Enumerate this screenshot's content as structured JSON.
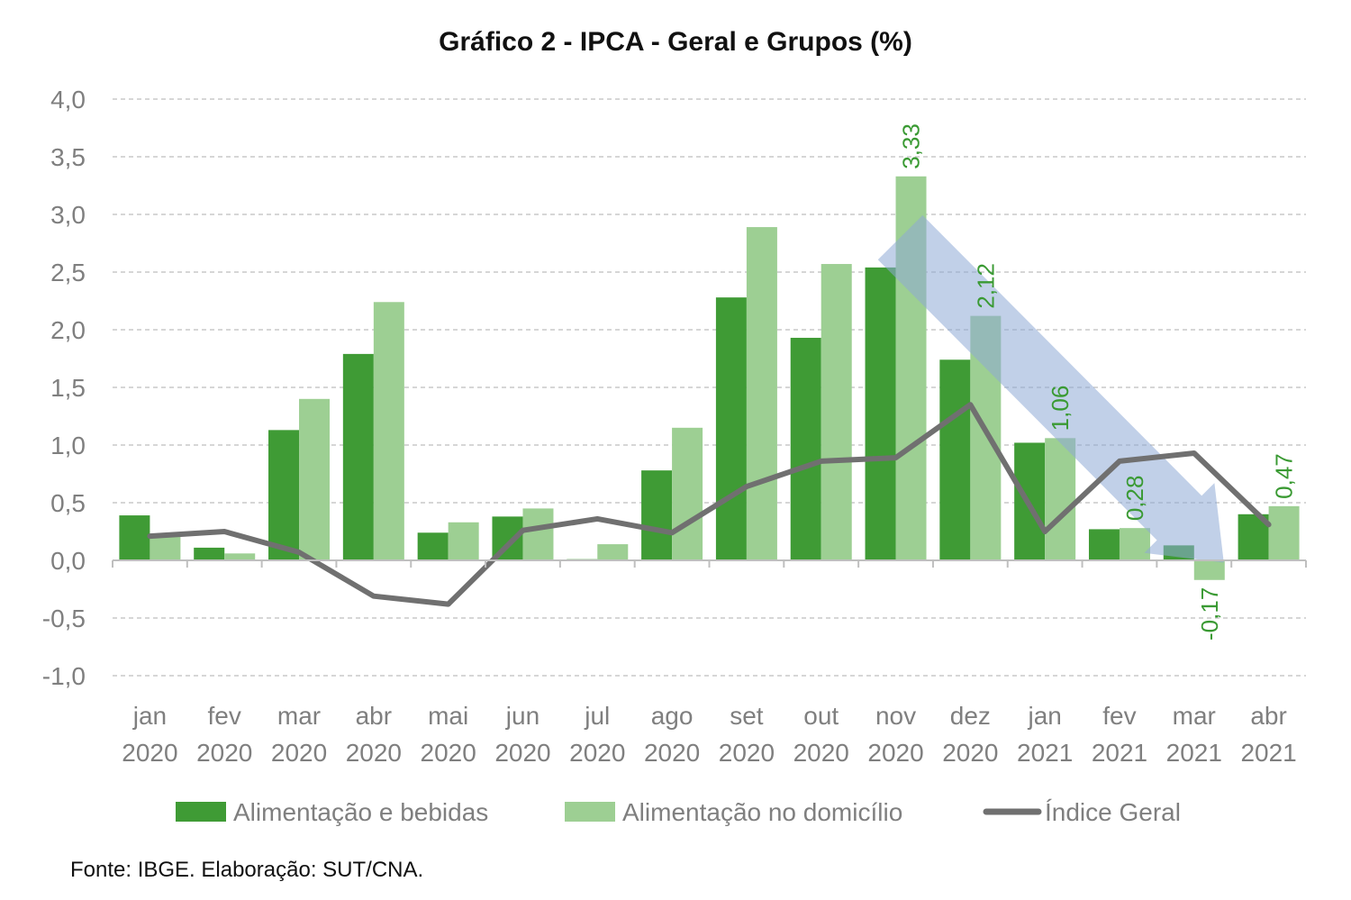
{
  "chart_data": {
    "type": "bar",
    "title": "Gráfico 2 - IPCA - Geral e Grupos (%)",
    "source": "Fonte: IBGE. Elaboração: SUT/CNA.",
    "categories": [
      [
        "jan",
        "2020"
      ],
      [
        "fev",
        "2020"
      ],
      [
        "mar",
        "2020"
      ],
      [
        "abr",
        "2020"
      ],
      [
        "mai",
        "2020"
      ],
      [
        "jun",
        "2020"
      ],
      [
        "jul",
        "2020"
      ],
      [
        "ago",
        "2020"
      ],
      [
        "set",
        "2020"
      ],
      [
        "out",
        "2020"
      ],
      [
        "nov",
        "2020"
      ],
      [
        "dez",
        "2020"
      ],
      [
        "jan",
        "2021"
      ],
      [
        "fev",
        "2021"
      ],
      [
        "mar",
        "2021"
      ],
      [
        "abr",
        "2021"
      ]
    ],
    "yticks": [
      "4,0",
      "3,5",
      "3,0",
      "2,5",
      "2,0",
      "1,5",
      "1,0",
      "0,5",
      "0,0",
      "-0,5",
      "-1,0"
    ],
    "ylim": [
      -1.0,
      4.0
    ],
    "grid": true,
    "legend_position": "bottom",
    "series": [
      {
        "name": "Alimentação e bebidas",
        "kind": "bar",
        "color": "#3f9b35",
        "values": [
          0.39,
          0.11,
          1.13,
          1.79,
          0.24,
          0.38,
          0.01,
          0.78,
          2.28,
          1.93,
          2.54,
          1.74,
          1.02,
          0.27,
          0.13,
          0.4
        ]
      },
      {
        "name": "Alimentação no domicílio",
        "kind": "bar",
        "color": "#9dcf93",
        "values": [
          0.23,
          0.06,
          1.4,
          2.24,
          0.33,
          0.45,
          0.14,
          1.15,
          2.89,
          2.57,
          3.33,
          2.12,
          1.06,
          0.28,
          -0.17,
          0.47
        ],
        "data_labels": {
          "10": "3,33",
          "11": "2,12",
          "12": "1,06",
          "13": "0,28",
          "14": "-0,17",
          "15": "0,47"
        }
      },
      {
        "name": "Índice Geral",
        "kind": "line",
        "color": "#707070",
        "values": [
          0.21,
          0.25,
          0.07,
          -0.31,
          -0.38,
          0.26,
          0.36,
          0.24,
          0.64,
          0.86,
          0.89,
          1.35,
          0.25,
          0.86,
          0.93,
          0.31
        ]
      }
    ],
    "annotation": {
      "shape": "downward-trend-arrow",
      "color": "#8ea9d6",
      "from_category": 10,
      "to_category": 14
    }
  }
}
